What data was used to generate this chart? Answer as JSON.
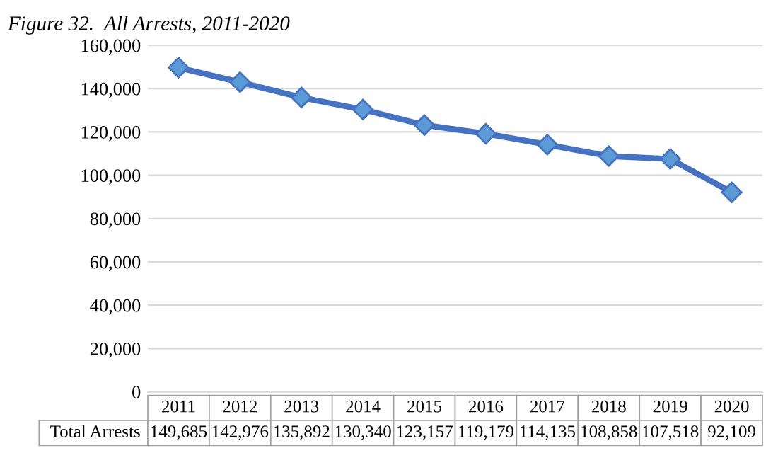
{
  "chart_data": {
    "type": "line",
    "title": "Figure 32.  All Arrests, 2011-2020",
    "categories": [
      "2011",
      "2012",
      "2013",
      "2014",
      "2015",
      "2016",
      "2017",
      "2018",
      "2019",
      "2020"
    ],
    "series": [
      {
        "name": "Total Arrests",
        "color": "#4472c4",
        "values": [
          149685,
          142976,
          135892,
          130340,
          123157,
          119179,
          114135,
          108858,
          107518,
          92109
        ],
        "value_labels": [
          "149,685",
          "142,976",
          "135,892",
          "130,340",
          "123,157",
          "119,179",
          "114,135",
          "108,858",
          "107,518",
          "92,109"
        ]
      }
    ],
    "ylim": [
      0,
      160000
    ],
    "yticks": [
      {
        "value": 0,
        "label": "0"
      },
      {
        "value": 20000,
        "label": "20,000"
      },
      {
        "value": 40000,
        "label": "40,000"
      },
      {
        "value": 60000,
        "label": "60,000"
      },
      {
        "value": 80000,
        "label": "80,000"
      },
      {
        "value": 100000,
        "label": "100,000"
      },
      {
        "value": 120000,
        "label": "120,000"
      },
      {
        "value": 140000,
        "label": "140,000"
      },
      {
        "value": 160000,
        "label": "160,000"
      }
    ],
    "grid": "y",
    "marker": "diamond",
    "line_style": "solid",
    "legend": false
  }
}
